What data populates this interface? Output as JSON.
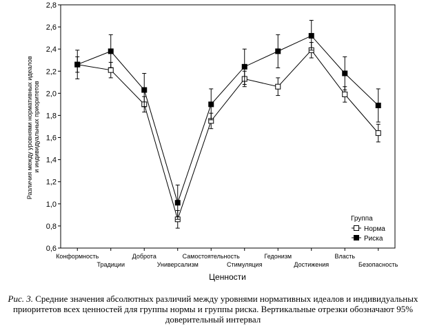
{
  "chart_data": {
    "type": "line",
    "xlabel": "Ценности",
    "ylabel": [
      "Различия между уровнями нормативных идеалов",
      "и индивидуальных приоритетов"
    ],
    "ylim": [
      0.6,
      2.8
    ],
    "yticks": [
      "0,6",
      "0,8",
      "1,0",
      "1,2",
      "1,4",
      "1,6",
      "1,8",
      "2,0",
      "2,2",
      "2,4",
      "2,6",
      "2,8"
    ],
    "grid": false,
    "categories": [
      "Конформность",
      "Традиции",
      "Доброта",
      "Универсализм",
      "Самостоятельность",
      "Стимуляция",
      "Гедонизм",
      "Достижения",
      "Власть",
      "Безопасность"
    ],
    "legend": {
      "title": "Группа",
      "position": "bottom-right"
    },
    "series": [
      {
        "name": "Норма",
        "marker": "open-square",
        "values": [
          2.26,
          2.21,
          1.9,
          0.86,
          1.75,
          2.13,
          2.06,
          2.39,
          1.99,
          1.64
        ],
        "ci_low": [
          2.19,
          2.14,
          1.83,
          0.78,
          1.68,
          2.06,
          1.98,
          2.32,
          1.92,
          1.56
        ],
        "ci_high": [
          2.33,
          2.28,
          1.97,
          0.94,
          1.82,
          2.2,
          2.14,
          2.46,
          2.06,
          1.72
        ]
      },
      {
        "name": "Риска",
        "marker": "filled-square",
        "values": [
          2.26,
          2.38,
          2.03,
          1.01,
          1.9,
          2.24,
          2.38,
          2.52,
          2.18,
          1.89
        ],
        "ci_low": [
          2.13,
          2.23,
          1.88,
          0.86,
          1.76,
          2.08,
          2.23,
          2.39,
          2.03,
          1.74
        ],
        "ci_high": [
          2.39,
          2.53,
          2.18,
          1.17,
          2.04,
          2.4,
          2.53,
          2.66,
          2.33,
          2.04
        ]
      }
    ]
  },
  "caption": {
    "figure_label": "Рис. 3.",
    "text": " Средние значения абсолютных различий между уровнями нормативных идеалов и индивидуальных приоритетов всех ценностей для группы нормы и группы риска. Вертикальные отрезки обозначают 95% доверительный интервал"
  }
}
